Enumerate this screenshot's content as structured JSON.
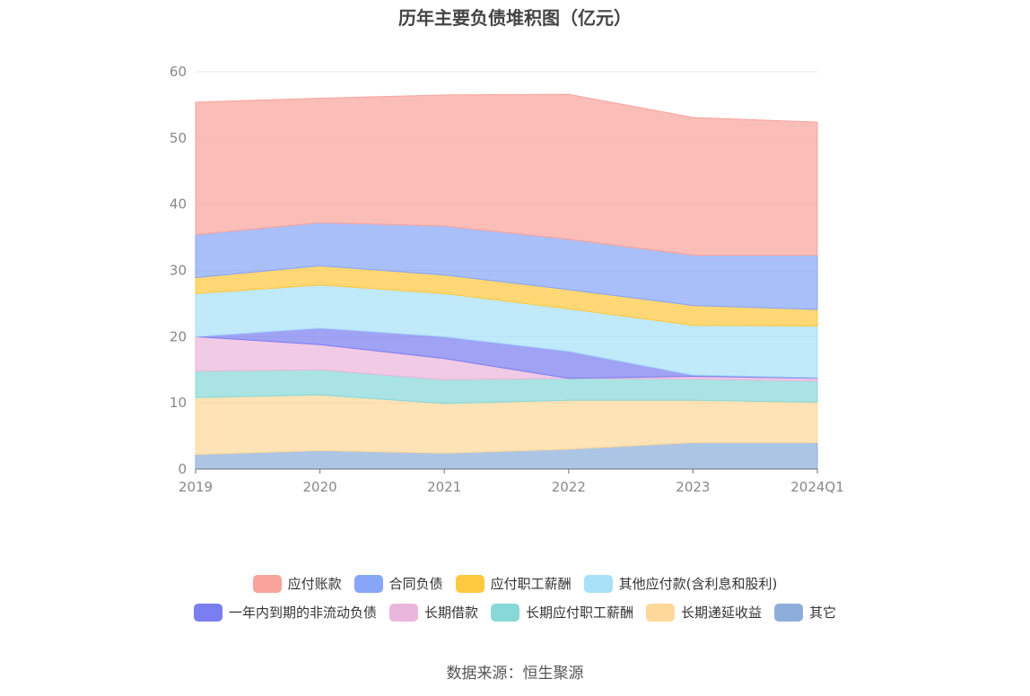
{
  "chart_data": {
    "type": "area",
    "title": "历年主要负债堆积图（亿元）",
    "stacked": true,
    "categories": [
      "2019",
      "2020",
      "2021",
      "2022",
      "2023",
      "2024Q1"
    ],
    "ylim": [
      0,
      60
    ],
    "yticks": [
      "0",
      "10",
      "20",
      "30",
      "40",
      "50",
      "60"
    ],
    "grid": true,
    "legend_position": "bottom",
    "series": [
      {
        "name": "其它",
        "color": "#8daedb",
        "values": [
          2.2,
          2.8,
          2.4,
          3.0,
          4.0,
          4.0
        ]
      },
      {
        "name": "长期递延收益",
        "color": "#fdd89a",
        "values": [
          8.6,
          8.4,
          7.5,
          7.4,
          6.4,
          6.1
        ]
      },
      {
        "name": "长期应付职工薪酬",
        "color": "#88d8d8",
        "values": [
          4.0,
          3.8,
          3.6,
          3.3,
          3.2,
          3.2
        ]
      },
      {
        "name": "长期借款",
        "color": "#ebb6dc",
        "values": [
          5.2,
          3.8,
          3.2,
          0.0,
          0.4,
          0.4
        ]
      },
      {
        "name": "一年内到期的非流动负债",
        "color": "#7b7ef0",
        "values": [
          0.0,
          2.5,
          3.3,
          4.1,
          0.2,
          0.1
        ]
      },
      {
        "name": "其他应付款(含利息和股利)",
        "color": "#a8e0f8",
        "values": [
          6.5,
          6.5,
          6.5,
          6.4,
          7.5,
          7.8
        ]
      },
      {
        "name": "应付职工薪酬",
        "color": "#ffc83f",
        "values": [
          2.4,
          2.9,
          2.8,
          2.9,
          3.0,
          2.5
        ]
      },
      {
        "name": "合同负债",
        "color": "#88a6f8",
        "values": [
          6.5,
          6.5,
          7.4,
          7.6,
          7.6,
          8.2
        ]
      },
      {
        "name": "应付账款",
        "color": "#f8a49c",
        "values": [
          20.0,
          18.8,
          19.8,
          21.9,
          20.8,
          20.1
        ]
      }
    ]
  },
  "legend": {
    "row1": [
      {
        "label": "应付账款",
        "color": "#f8a49c"
      },
      {
        "label": "合同负债",
        "color": "#88a6f8"
      },
      {
        "label": "应付职工薪酬",
        "color": "#ffc83f"
      },
      {
        "label": "其他应付款(含利息和股利)",
        "color": "#a8e0f8"
      }
    ],
    "row2": [
      {
        "label": "一年内到期的非流动负债",
        "color": "#7b7ef0"
      },
      {
        "label": "长期借款",
        "color": "#ebb6dc"
      },
      {
        "label": "长期应付职工薪酬",
        "color": "#88d8d8"
      },
      {
        "label": "长期递延收益",
        "color": "#fdd89a"
      },
      {
        "label": "其它",
        "color": "#8daedb"
      }
    ]
  },
  "source": "数据来源：恒生聚源"
}
